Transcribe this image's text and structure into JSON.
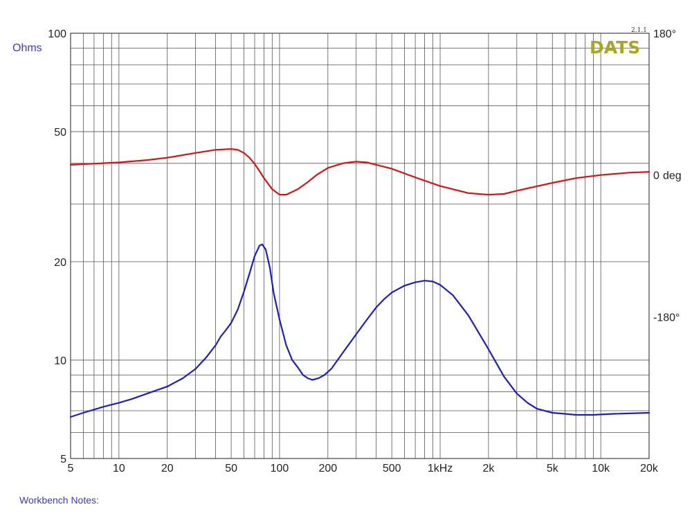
{
  "logo": {
    "text": "DATS",
    "version": "2.1.1",
    "color": "#a8a820"
  },
  "notes_label": "Workbench Notes:",
  "colors": {
    "impedance": "#1c1cc8",
    "phase": "#dd1010",
    "grid": "#555555",
    "ylabel": "#3a3ad0"
  },
  "chart_data": {
    "type": "line",
    "xscale": "log",
    "xlim": [
      5,
      20000
    ],
    "grid": true,
    "xlabel": "",
    "x_ticks": [
      {
        "value": 5,
        "label": "5"
      },
      {
        "value": 10,
        "label": "10"
      },
      {
        "value": 20,
        "label": "20"
      },
      {
        "value": 50,
        "label": "50"
      },
      {
        "value": 100,
        "label": "100"
      },
      {
        "value": 200,
        "label": "200"
      },
      {
        "value": 500,
        "label": "500"
      },
      {
        "value": 1000,
        "label": "1kHz"
      },
      {
        "value": 2000,
        "label": "2k"
      },
      {
        "value": 5000,
        "label": "5k"
      },
      {
        "value": 10000,
        "label": "10k"
      },
      {
        "value": 20000,
        "label": "20k"
      }
    ],
    "y_left": {
      "label": "Ohms",
      "scale": "log",
      "lim": [
        5,
        100
      ],
      "ticks": [
        {
          "value": 100,
          "label": "100"
        },
        {
          "value": 50,
          "label": "50"
        },
        {
          "value": 20,
          "label": "20"
        },
        {
          "value": 10,
          "label": "10"
        },
        {
          "value": 5,
          "label": "5"
        }
      ]
    },
    "y_right": {
      "unit_label": "deg",
      "zero_label": "0",
      "lim": [
        -360,
        180
      ],
      "ticks": [
        {
          "value": 180,
          "label": "180°"
        },
        {
          "value": -180,
          "label": "-180°"
        }
      ]
    },
    "series": [
      {
        "axis": "left",
        "x": [
          5,
          6,
          8,
          10,
          12,
          15,
          20,
          25,
          30,
          35,
          40,
          43,
          46,
          50,
          55,
          60,
          65,
          70,
          75,
          78,
          82,
          87,
          92,
          100,
          110,
          120,
          130,
          140,
          150,
          160,
          175,
          190,
          210,
          250,
          300,
          350,
          400,
          450,
          500,
          600,
          700,
          800,
          900,
          1000,
          1200,
          1500,
          2000,
          2500,
          3000,
          3500,
          4000,
          5000,
          6000,
          7000,
          8000,
          9000,
          10000,
          12000,
          15000,
          20000
        ],
        "y": [
          6.7,
          6.9,
          7.2,
          7.4,
          7.6,
          7.9,
          8.3,
          8.8,
          9.4,
          10.2,
          11.1,
          11.8,
          12.3,
          13.0,
          14.3,
          16.2,
          18.4,
          20.8,
          22.4,
          22.6,
          21.8,
          19.2,
          16.0,
          13.3,
          11.1,
          10.0,
          9.5,
          9.0,
          8.8,
          8.7,
          8.8,
          9.0,
          9.4,
          10.6,
          12.0,
          13.3,
          14.5,
          15.4,
          16.1,
          16.9,
          17.3,
          17.5,
          17.4,
          17.0,
          15.8,
          13.7,
          10.8,
          8.9,
          7.9,
          7.4,
          7.1,
          6.9,
          6.85,
          6.8,
          6.8,
          6.8,
          6.82,
          6.85,
          6.87,
          6.9
        ]
      },
      {
        "axis": "right",
        "x": [
          5,
          8,
          10,
          15,
          20,
          30,
          40,
          50,
          55,
          60,
          65,
          70,
          75,
          80,
          90,
          100,
          110,
          130,
          150,
          170,
          200,
          250,
          300,
          350,
          400,
          500,
          700,
          1000,
          1500,
          2000,
          2500,
          3000,
          5000,
          7000,
          10000,
          15000,
          20000
        ],
        "y": [
          13,
          15,
          16,
          19,
          22,
          28,
          32,
          33,
          32,
          28,
          22,
          14,
          5,
          -4,
          -18,
          -25,
          -25,
          -18,
          -9,
          0,
          9,
          15,
          17,
          16,
          13,
          8,
          -3,
          -14,
          -23,
          -25,
          -24,
          -20,
          -10,
          -4,
          0,
          3,
          4
        ]
      }
    ]
  }
}
